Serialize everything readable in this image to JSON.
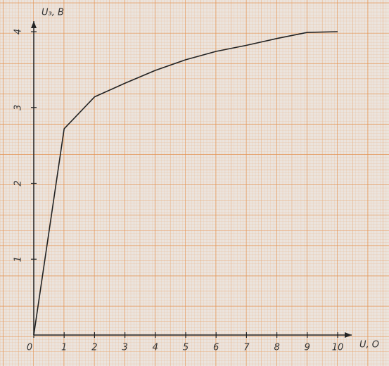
{
  "chart_data": {
    "type": "line",
    "xlabel": "U, O",
    "ylabel": "U₃, B",
    "x": [
      0,
      1,
      2,
      3,
      4,
      5,
      6,
      7,
      8,
      9,
      10
    ],
    "series": [
      {
        "name": null,
        "color": "#222222",
        "values": [
          0,
          2.72,
          3.14,
          3.32,
          3.49,
          3.63,
          3.74,
          3.82,
          3.91,
          3.99,
          4.0
        ]
      }
    ],
    "xlim": [
      0,
      10
    ],
    "ylim": [
      0,
      4
    ],
    "xticks": [
      0,
      1,
      2,
      3,
      4,
      5,
      6,
      7,
      8,
      9,
      10
    ],
    "yticks": [
      1,
      2,
      3,
      4
    ],
    "grid": true
  }
}
